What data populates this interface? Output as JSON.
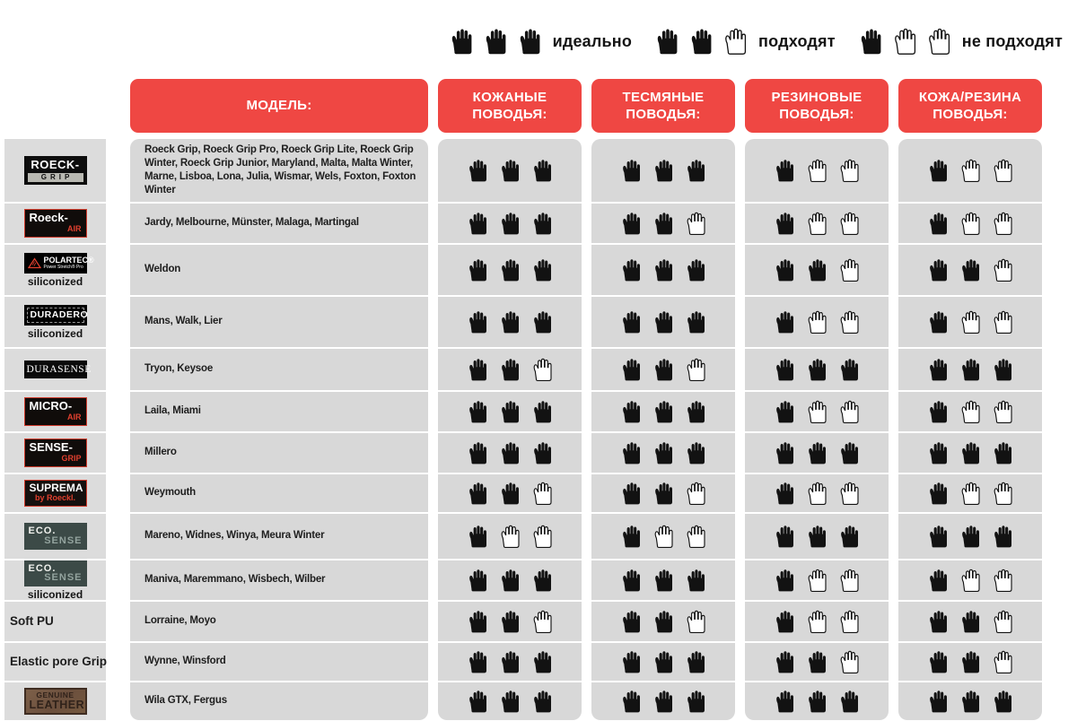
{
  "legend": {
    "items": [
      {
        "filled": 3,
        "label": "идеально"
      },
      {
        "filled": 2,
        "label": "подходят"
      },
      {
        "filled": 1,
        "label": "не подходят"
      }
    ]
  },
  "table": {
    "headers": [
      {
        "id": "model",
        "label": "МОДЕЛЬ:"
      },
      {
        "id": "leather-reins",
        "label": "КОЖАНЫЕ ПОВОДЬЯ:"
      },
      {
        "id": "webbing-reins",
        "label": "ТЕСМЯНЫЕ ПОВОДЬЯ:"
      },
      {
        "id": "rubber-reins",
        "label": "РЕЗИНОВЫЕ ПОВОДЬЯ:"
      },
      {
        "id": "leather-rubber-reins",
        "label": "КОЖА/РЕЗИНА ПОВОДЬЯ:"
      }
    ],
    "rows": [
      {
        "models": "Roeck Grip, Roeck Grip Pro, Roeck Grip Lite, Roeck Grip Winter, Roeck Grip Junior, Maryland, Malta, Malta Winter, Marne, Lisboa, Lona, Julia, Wismar, Wels, Foxton, Foxton Winter",
        "ratings": [
          3,
          3,
          1,
          1
        ]
      },
      {
        "models": "Jardy, Melbourne, Münster, Malaga, Martingal",
        "ratings": [
          3,
          2,
          1,
          1
        ]
      },
      {
        "models": "Weldon",
        "ratings": [
          3,
          3,
          2,
          2
        ]
      },
      {
        "models": "Mans, Walk, Lier",
        "ratings": [
          3,
          3,
          1,
          1
        ]
      },
      {
        "models": "Tryon, Keysoe",
        "ratings": [
          2,
          2,
          3,
          3
        ]
      },
      {
        "models": "Laila, Miami",
        "ratings": [
          3,
          3,
          1,
          1
        ]
      },
      {
        "models": "Millero",
        "ratings": [
          3,
          3,
          3,
          3
        ]
      },
      {
        "models": "Weymouth",
        "ratings": [
          2,
          2,
          1,
          1
        ]
      },
      {
        "models": "Mareno, Widnes, Winya, Meura Winter",
        "ratings": [
          1,
          1,
          3,
          3
        ]
      },
      {
        "models": "Maniva, Maremmano, Wisbech, Wilber",
        "ratings": [
          3,
          3,
          1,
          1
        ]
      },
      {
        "models": "Lorraine, Moyo",
        "ratings": [
          2,
          2,
          1,
          2
        ]
      },
      {
        "models": "Wynne, Winsford",
        "ratings": [
          3,
          3,
          2,
          2
        ]
      },
      {
        "models": "Wila GTX, Fergus",
        "ratings": [
          3,
          3,
          3,
          3
        ]
      }
    ]
  },
  "sidebar": {
    "items": [
      {
        "type": "roeck-grip",
        "line1": "ROECK-",
        "line2": "GRIP"
      },
      {
        "type": "black-red",
        "line1": "Roeck-",
        "line2": "AIR"
      },
      {
        "type": "polartec",
        "line1": "POLARTEC®",
        "line2": "Power Stretch® Pro",
        "caption": "siliconized"
      },
      {
        "type": "duradero",
        "line1": "DURADERO",
        "caption": "siliconized"
      },
      {
        "type": "durasense",
        "line1": "DURASENSE"
      },
      {
        "type": "black-red",
        "line1": "MICRO-",
        "line2": "AIR"
      },
      {
        "type": "black-red",
        "line1": "SENSE-",
        "line2": "GRIP"
      },
      {
        "type": "suprema",
        "line1": "SUPREMA",
        "line2": "by Roeckl."
      },
      {
        "type": "ecosense",
        "line1": "ECO.",
        "line2": "SENSE"
      },
      {
        "type": "ecosense",
        "line1": "ECO.",
        "line2": "SENSE",
        "caption": "siliconized"
      },
      {
        "type": "text",
        "line1": "Soft PU"
      },
      {
        "type": "text",
        "line1": "Elastic pore Grip"
      },
      {
        "type": "leather",
        "line1": "GENUINE",
        "line2": "LEATHER"
      }
    ]
  },
  "colors": {
    "accent_red": "#ef4743",
    "logo_red": "#e0402f",
    "cell_gray": "#d8d8d8",
    "sidebar_gray": "#dcdcdc",
    "hand_black": "#121212",
    "eco_teal": "#3c4a47",
    "leather_brown": "#6b4f3d"
  },
  "chart_data": {
    "type": "table",
    "title": "",
    "legend": [
      "идеально (3 руки)",
      "подходят (2 руки)",
      "не подходят (1 рука)"
    ],
    "columns": [
      "МОДЕЛЬ:",
      "КОЖАНЫЕ ПОВОДЬЯ:",
      "ТЕСМЯНЫЕ ПОВОДЬЯ:",
      "РЕЗИНОВЫЕ ПОВОДЬЯ:",
      "КОЖА/РЕЗИНА ПОВОДЬЯ:"
    ],
    "rows": [
      [
        "Roeck Grip, Roeck Grip Pro, Roeck Grip Lite, Roeck Grip Winter, Roeck Grip Junior, Maryland, Malta, Malta Winter, Marne, Lisboa, Lona, Julia, Wismar, Wels, Foxton, Foxton Winter",
        3,
        3,
        1,
        1
      ],
      [
        "Jardy, Melbourne, Münster, Malaga, Martingal",
        3,
        2,
        1,
        1
      ],
      [
        "Weldon",
        3,
        3,
        2,
        2
      ],
      [
        "Mans, Walk, Lier",
        3,
        3,
        1,
        1
      ],
      [
        "Tryon, Keysoe",
        2,
        2,
        3,
        3
      ],
      [
        "Laila, Miami",
        3,
        3,
        1,
        1
      ],
      [
        "Millero",
        3,
        3,
        3,
        3
      ],
      [
        "Weymouth",
        2,
        2,
        1,
        1
      ],
      [
        "Mareno, Widnes, Winya, Meura Winter",
        1,
        1,
        3,
        3
      ],
      [
        "Maniva, Maremmano, Wisbech, Wilber",
        3,
        3,
        1,
        1
      ],
      [
        "Lorraine, Moyo",
        2,
        2,
        1,
        2
      ],
      [
        "Wynne, Winsford",
        3,
        3,
        2,
        2
      ],
      [
        "Wila GTX, Fergus",
        3,
        3,
        3,
        3
      ]
    ]
  }
}
